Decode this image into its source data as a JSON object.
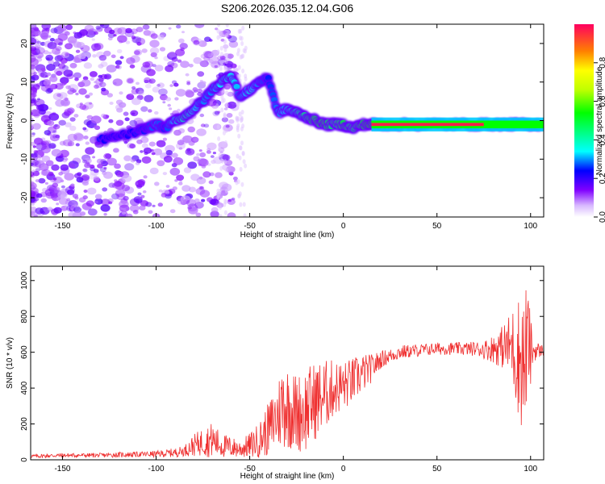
{
  "title": "S206.2026.035.12.04.G06",
  "chart_data": [
    {
      "type": "heatmap",
      "xlabel": "Height of straight line (km)",
      "ylabel": "Frequency (Hz)",
      "xlim": [
        -167,
        107
      ],
      "ylim": [
        -25,
        25
      ],
      "xticks": [
        -150,
        -100,
        -50,
        0,
        50,
        100
      ],
      "yticks": [
        -20,
        -10,
        0,
        10,
        20
      ],
      "colorbar": {
        "label": "Normalized spectral amplitude",
        "range": [
          0,
          1
        ],
        "ticks": [
          "0.0",
          "0.2",
          "0.4",
          "0.6",
          "0.8"
        ],
        "tick_values": [
          0,
          0.2,
          0.4,
          0.6,
          0.8
        ]
      },
      "ridge": [
        {
          "x": -130,
          "y": -5,
          "a": 0.25
        },
        {
          "x": -120,
          "y": -4,
          "a": 0.2
        },
        {
          "x": -110,
          "y": -3,
          "a": 0.25
        },
        {
          "x": -105,
          "y": -2,
          "a": 0.25
        },
        {
          "x": -100,
          "y": -1,
          "a": 0.3
        },
        {
          "x": -95,
          "y": -2,
          "a": 0.25
        },
        {
          "x": -90,
          "y": 0,
          "a": 0.35
        },
        {
          "x": -85,
          "y": 1,
          "a": 0.4
        },
        {
          "x": -80,
          "y": 3,
          "a": 0.35
        },
        {
          "x": -75,
          "y": 5,
          "a": 0.3
        },
        {
          "x": -70,
          "y": 8,
          "a": 0.3
        },
        {
          "x": -65,
          "y": 10,
          "a": 0.35
        },
        {
          "x": -60,
          "y": 12,
          "a": 0.35
        },
        {
          "x": -55,
          "y": 6,
          "a": 0.3
        },
        {
          "x": -50,
          "y": 8,
          "a": 0.35
        },
        {
          "x": -45,
          "y": 10,
          "a": 0.3
        },
        {
          "x": -40,
          "y": 11,
          "a": 0.25
        },
        {
          "x": -35,
          "y": 2,
          "a": 0.3
        },
        {
          "x": -30,
          "y": 3,
          "a": 0.35
        },
        {
          "x": -25,
          "y": 2,
          "a": 0.4
        },
        {
          "x": -20,
          "y": 1,
          "a": 0.45
        },
        {
          "x": -15,
          "y": 0,
          "a": 0.5
        },
        {
          "x": -10,
          "y": -1,
          "a": 0.5
        },
        {
          "x": -5,
          "y": -1,
          "a": 0.45
        },
        {
          "x": 0,
          "y": -1,
          "a": 0.5
        },
        {
          "x": 5,
          "y": -2,
          "a": 0.45
        },
        {
          "x": 10,
          "y": -1,
          "a": 0.5
        },
        {
          "x": 15,
          "y": -1,
          "a": 0.55
        },
        {
          "x": 20,
          "y": -1,
          "a": 0.6
        },
        {
          "x": 30,
          "y": -1,
          "a": 0.6
        },
        {
          "x": 40,
          "y": -1,
          "a": 0.6
        },
        {
          "x": 50,
          "y": -1,
          "a": 0.6
        },
        {
          "x": 60,
          "y": -1,
          "a": 0.55
        },
        {
          "x": 70,
          "y": -1,
          "a": 0.55
        },
        {
          "x": 80,
          "y": -1,
          "a": 0.5
        },
        {
          "x": 85,
          "y": -1,
          "a": 0.5
        },
        {
          "x": 90,
          "y": -1,
          "a": 0.45
        },
        {
          "x": 95,
          "y": -1,
          "a": 0.35
        },
        {
          "x": 100,
          "y": -1,
          "a": 0.3
        },
        {
          "x": 105,
          "y": -1,
          "a": 0.3
        }
      ]
    },
    {
      "type": "line",
      "xlabel": "Height of straight line (km)",
      "ylabel": "SNR (10 * v/v)",
      "xlim": [
        -167,
        107
      ],
      "ylim": [
        0,
        1080
      ],
      "xticks": [
        -150,
        -100,
        -50,
        0,
        50,
        100
      ],
      "yticks": [
        0,
        200,
        400,
        600,
        800,
        1000
      ],
      "color": "#ef3030",
      "series": [
        {
          "x": [
            -167,
            -160,
            -150,
            -140,
            -130,
            -120,
            -110,
            -100,
            -90,
            -85,
            -80,
            -75,
            -70,
            -65,
            -60,
            -55,
            -50,
            -45,
            -40,
            -35,
            -32,
            -30,
            -25,
            -20,
            -15,
            -10,
            -5,
            0,
            5,
            10,
            15,
            20,
            25,
            30,
            40,
            50,
            60,
            70,
            75,
            80,
            85,
            90,
            92,
            95,
            97,
            98,
            100,
            102,
            105,
            107
          ],
          "values": [
            20,
            22,
            25,
            25,
            25,
            28,
            30,
            32,
            40,
            50,
            80,
            100,
            110,
            80,
            70,
            60,
            80,
            110,
            170,
            250,
            320,
            300,
            260,
            280,
            330,
            360,
            400,
            410,
            440,
            480,
            510,
            560,
            580,
            600,
            610,
            620,
            620,
            620,
            615,
            620,
            630,
            640,
            600,
            560,
            520,
            680,
            600,
            610,
            610,
            610
          ],
          "range": [
            10,
            12,
            12,
            12,
            12,
            15,
            15,
            18,
            25,
            30,
            60,
            80,
            100,
            70,
            60,
            50,
            70,
            100,
            150,
            200,
            260,
            240,
            220,
            240,
            220,
            200,
            160,
            140,
            130,
            110,
            80,
            50,
            40,
            40,
            35,
            35,
            35,
            40,
            50,
            80,
            120,
            200,
            300,
            380,
            420,
            350,
            200,
            60,
            40,
            30
          ]
        }
      ]
    }
  ]
}
